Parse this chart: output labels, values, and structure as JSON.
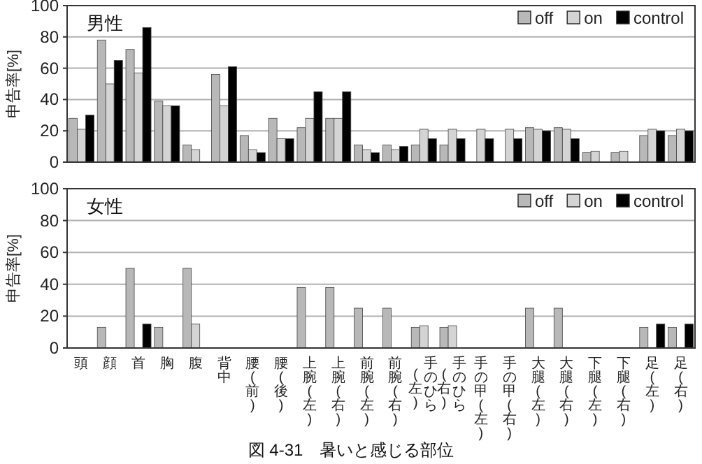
{
  "chart_data": [
    {
      "type": "bar",
      "title": "男性",
      "ylabel": "申告率[%]",
      "categories": [
        "頭",
        "顔",
        "首",
        "胸",
        "腹",
        "背中",
        "腰(前)",
        "腰(後)",
        "上腕(左)",
        "上腕(右)",
        "前腕(左)",
        "前腕(右)",
        "手のひら(左)",
        "手のひら(右)",
        "手の甲(左)",
        "手の甲(右)",
        "大腿(左)",
        "大腿(右)",
        "下腿(左)",
        "下腿(右)",
        "足(左)",
        "足(右)"
      ],
      "series": [
        {
          "name": "off",
          "color": "#b8b8b8",
          "values": [
            28,
            78,
            72,
            39,
            11,
            56,
            17,
            28,
            22,
            28,
            11,
            11,
            11,
            11,
            0,
            0,
            22,
            22,
            6,
            6,
            17,
            17
          ]
        },
        {
          "name": "on",
          "color": "#d4d4d4",
          "values": [
            21,
            50,
            57,
            36,
            8,
            36,
            8,
            15,
            28,
            28,
            8,
            8,
            21,
            21,
            21,
            21,
            21,
            21,
            7,
            7,
            21,
            21
          ]
        },
        {
          "name": "control",
          "color": "#000000",
          "values": [
            30,
            65,
            86,
            36,
            0,
            61,
            6,
            15,
            45,
            45,
            6,
            10,
            15,
            15,
            15,
            15,
            20,
            15,
            0,
            0,
            20,
            20
          ]
        }
      ],
      "ylim": [
        0,
        100
      ],
      "yticks": [
        0,
        20,
        40,
        60,
        80,
        100
      ],
      "grid": "y",
      "legend": "top right",
      "tick_labels": "y"
    },
    {
      "type": "bar",
      "title": "女性",
      "ylabel": "申告率[%]",
      "categories": [
        "頭",
        "顔",
        "首",
        "胸",
        "腹",
        "背中",
        "腰(前)",
        "腰(後)",
        "上腕(左)",
        "上腕(右)",
        "前腕(左)",
        "前腕(右)",
        "手のひら(左)",
        "手のひら(右)",
        "手の甲(左)",
        "手の甲(右)",
        "大腿(左)",
        "大腿(右)",
        "下腿(左)",
        "下腿(右)",
        "足(左)",
        "足(右)"
      ],
      "series": [
        {
          "name": "off",
          "color": "#b8b8b8",
          "values": [
            0,
            13,
            50,
            13,
            50,
            0,
            0,
            0,
            38,
            38,
            25,
            25,
            13,
            13,
            0,
            0,
            25,
            25,
            0,
            0,
            13,
            13
          ]
        },
        {
          "name": "on",
          "color": "#d4d4d4",
          "values": [
            0,
            0,
            0,
            0,
            15,
            0,
            0,
            0,
            0,
            0,
            0,
            0,
            14,
            14,
            0,
            0,
            0,
            0,
            0,
            0,
            0,
            0
          ]
        },
        {
          "name": "control",
          "color": "#000000",
          "values": [
            0,
            0,
            15,
            0,
            0,
            0,
            0,
            0,
            0,
            0,
            0,
            0,
            0,
            0,
            0,
            0,
            0,
            0,
            0,
            0,
            15,
            15
          ]
        }
      ],
      "ylim": [
        0,
        100
      ],
      "yticks": [
        0,
        20,
        40,
        60,
        80,
        100
      ],
      "grid": "y",
      "legend": "top right",
      "annotations": [
        "図 4-31　暑いと感じる部位"
      ]
    }
  ]
}
